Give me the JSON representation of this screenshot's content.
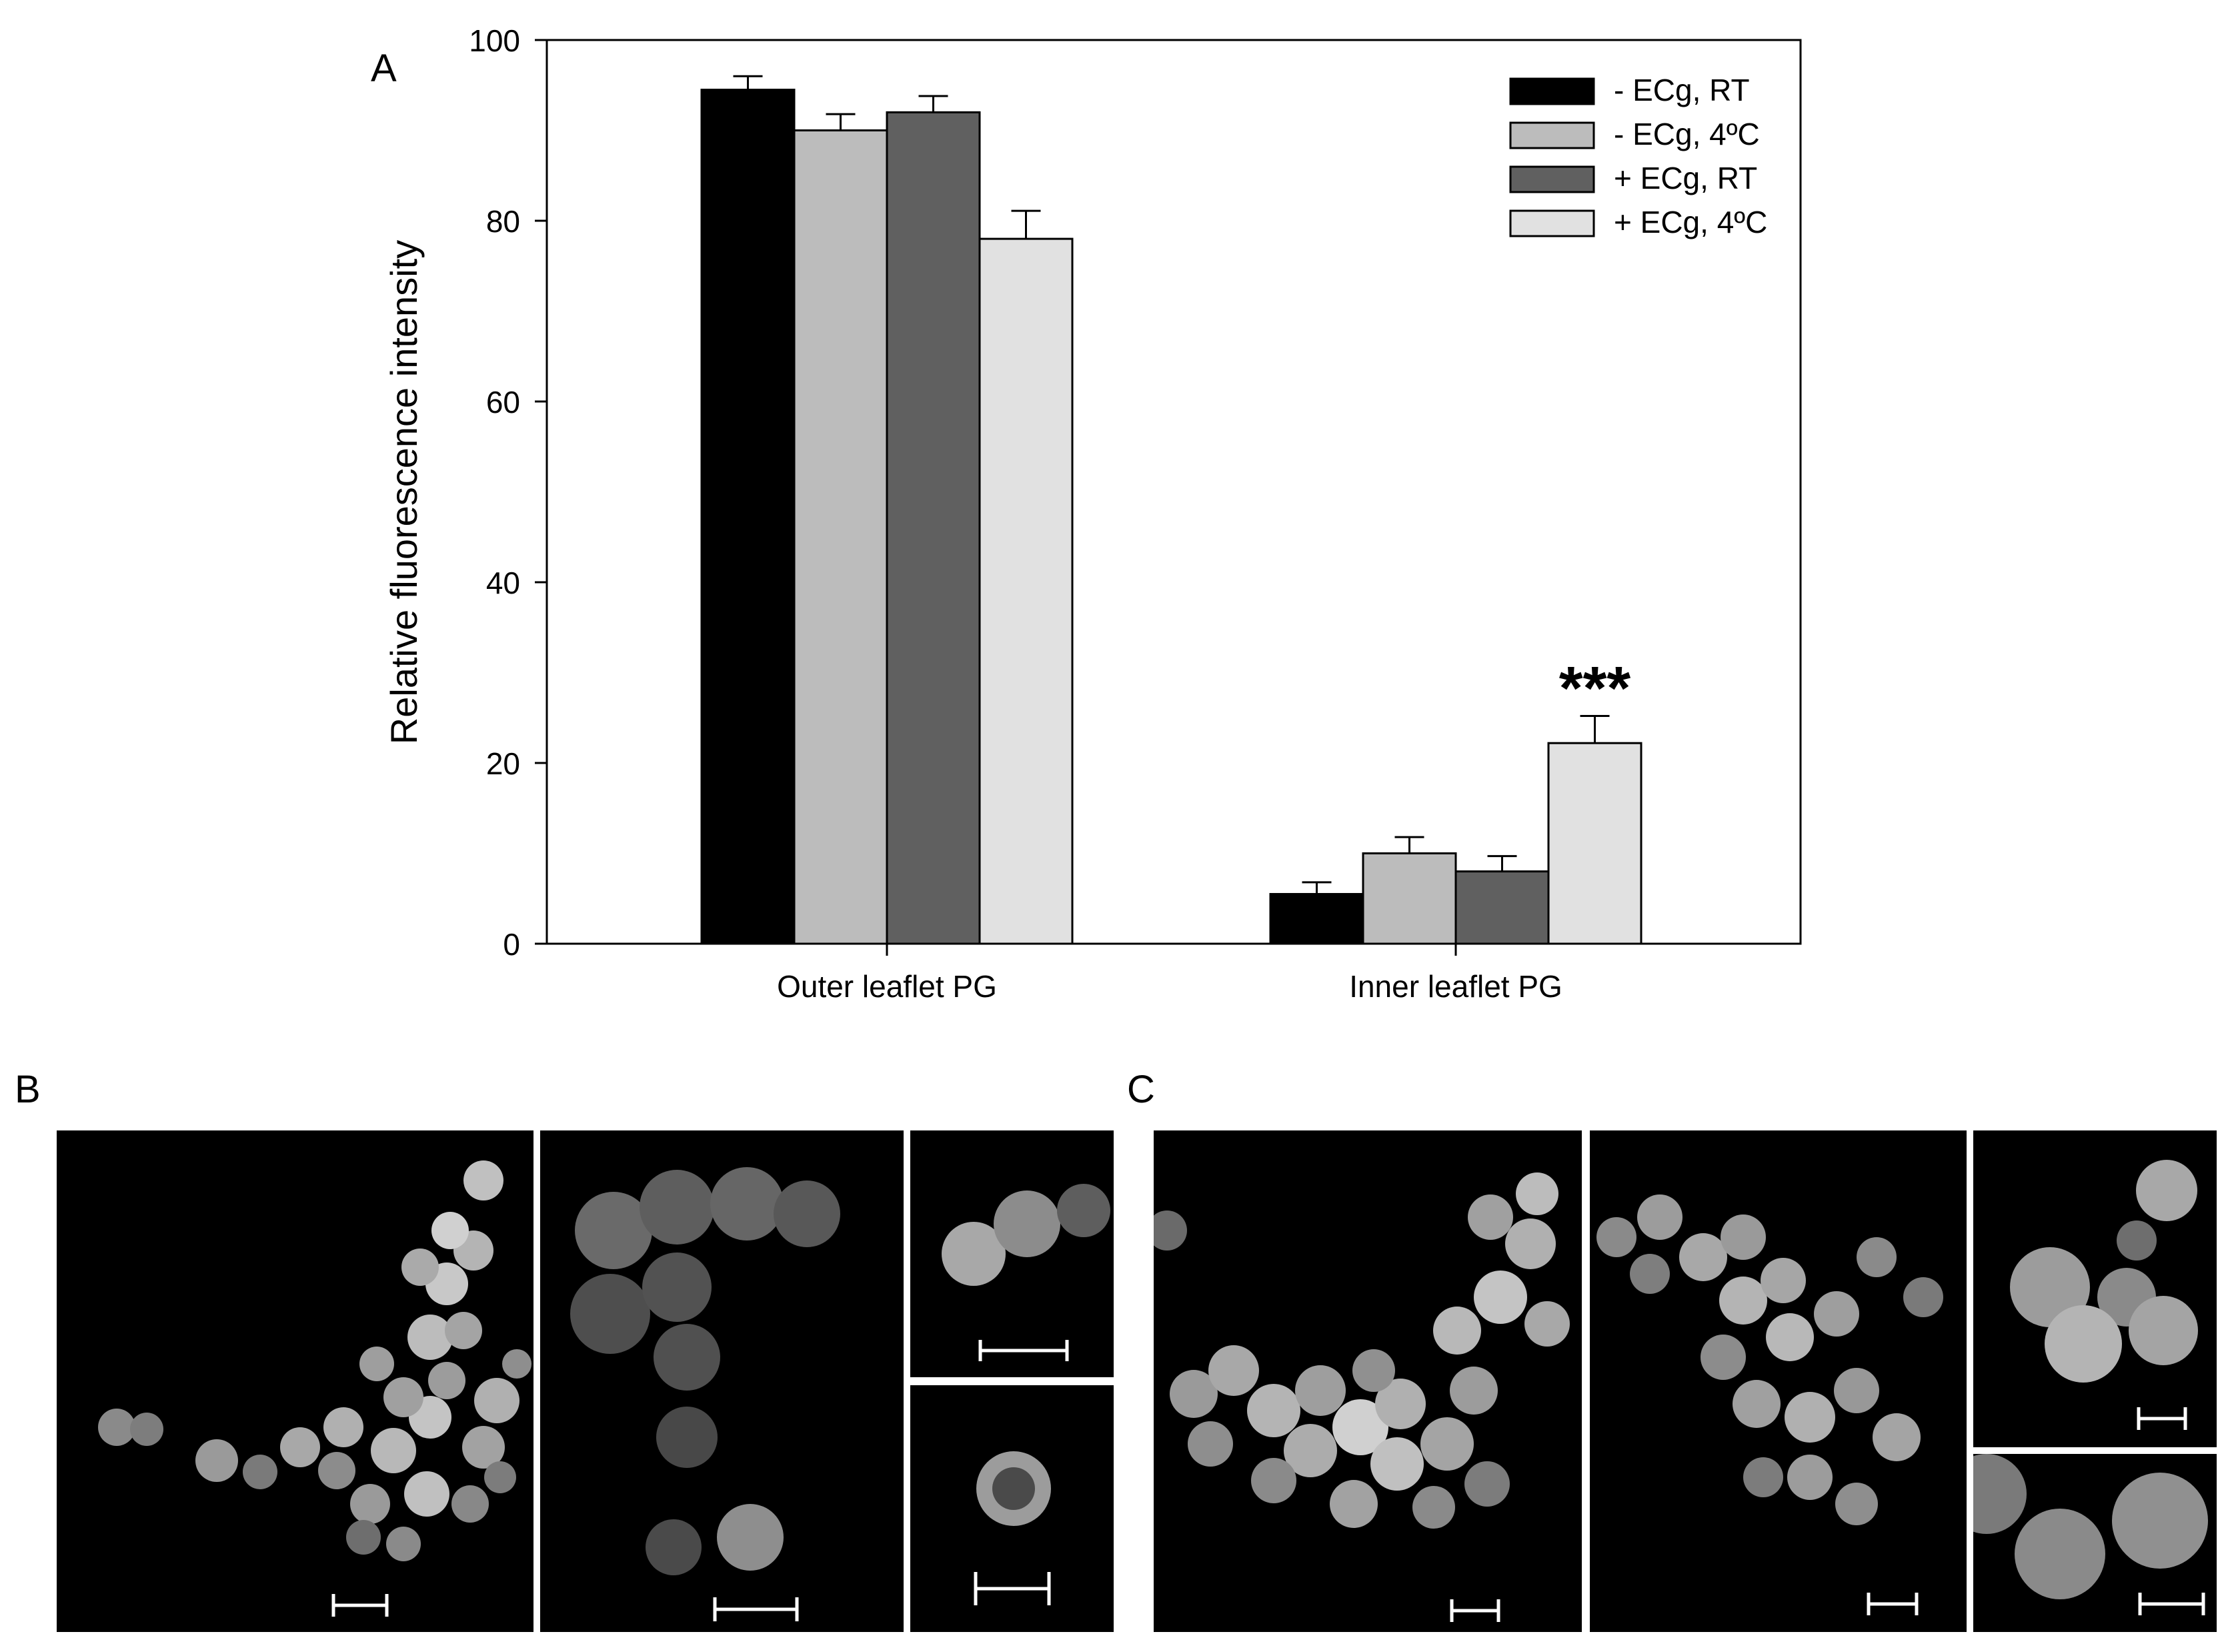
{
  "panels": {
    "a": "A",
    "b": "B",
    "c": "C"
  },
  "chart_data": {
    "type": "bar",
    "ylabel": "Relative fluorescence intensity",
    "ylim": [
      0,
      100
    ],
    "yticks": [
      "0",
      "20",
      "40",
      "60",
      "80",
      "100"
    ],
    "categories": [
      "Outer leaflet PG",
      "Inner leaflet PG"
    ],
    "series": [
      {
        "name": "- ECg, RT",
        "color": "#000000",
        "values": [
          94.5,
          5.5
        ],
        "errors": [
          1.5,
          1.3
        ]
      },
      {
        "name": "- ECg, 4ºC",
        "color": "#bcbcbc",
        "values": [
          90,
          10
        ],
        "errors": [
          1.8,
          1.8
        ]
      },
      {
        "name": "+ ECg, RT",
        "color": "#606060",
        "values": [
          92,
          8
        ],
        "errors": [
          1.8,
          1.7
        ]
      },
      {
        "name": "+ ECg, 4ºC",
        "color": "#e1e1e1",
        "values": [
          78,
          22.2
        ],
        "errors": [
          3.1,
          3.0
        ]
      }
    ],
    "annotations": [
      {
        "text": "***",
        "category": "Inner leaflet PG",
        "series": "+ ECg, 4ºC"
      }
    ],
    "legend_position": "top-right",
    "grid": false
  },
  "micrographs": [
    {
      "panel": "B",
      "label": "field 1"
    },
    {
      "panel": "B",
      "label": "field 2"
    },
    {
      "panel": "B",
      "label": "inset upper"
    },
    {
      "panel": "B",
      "label": "inset lower"
    },
    {
      "panel": "C",
      "label": "field 1"
    },
    {
      "panel": "C",
      "label": "field 2"
    },
    {
      "panel": "C",
      "label": "inset upper"
    },
    {
      "panel": "C",
      "label": "inset lower"
    }
  ]
}
